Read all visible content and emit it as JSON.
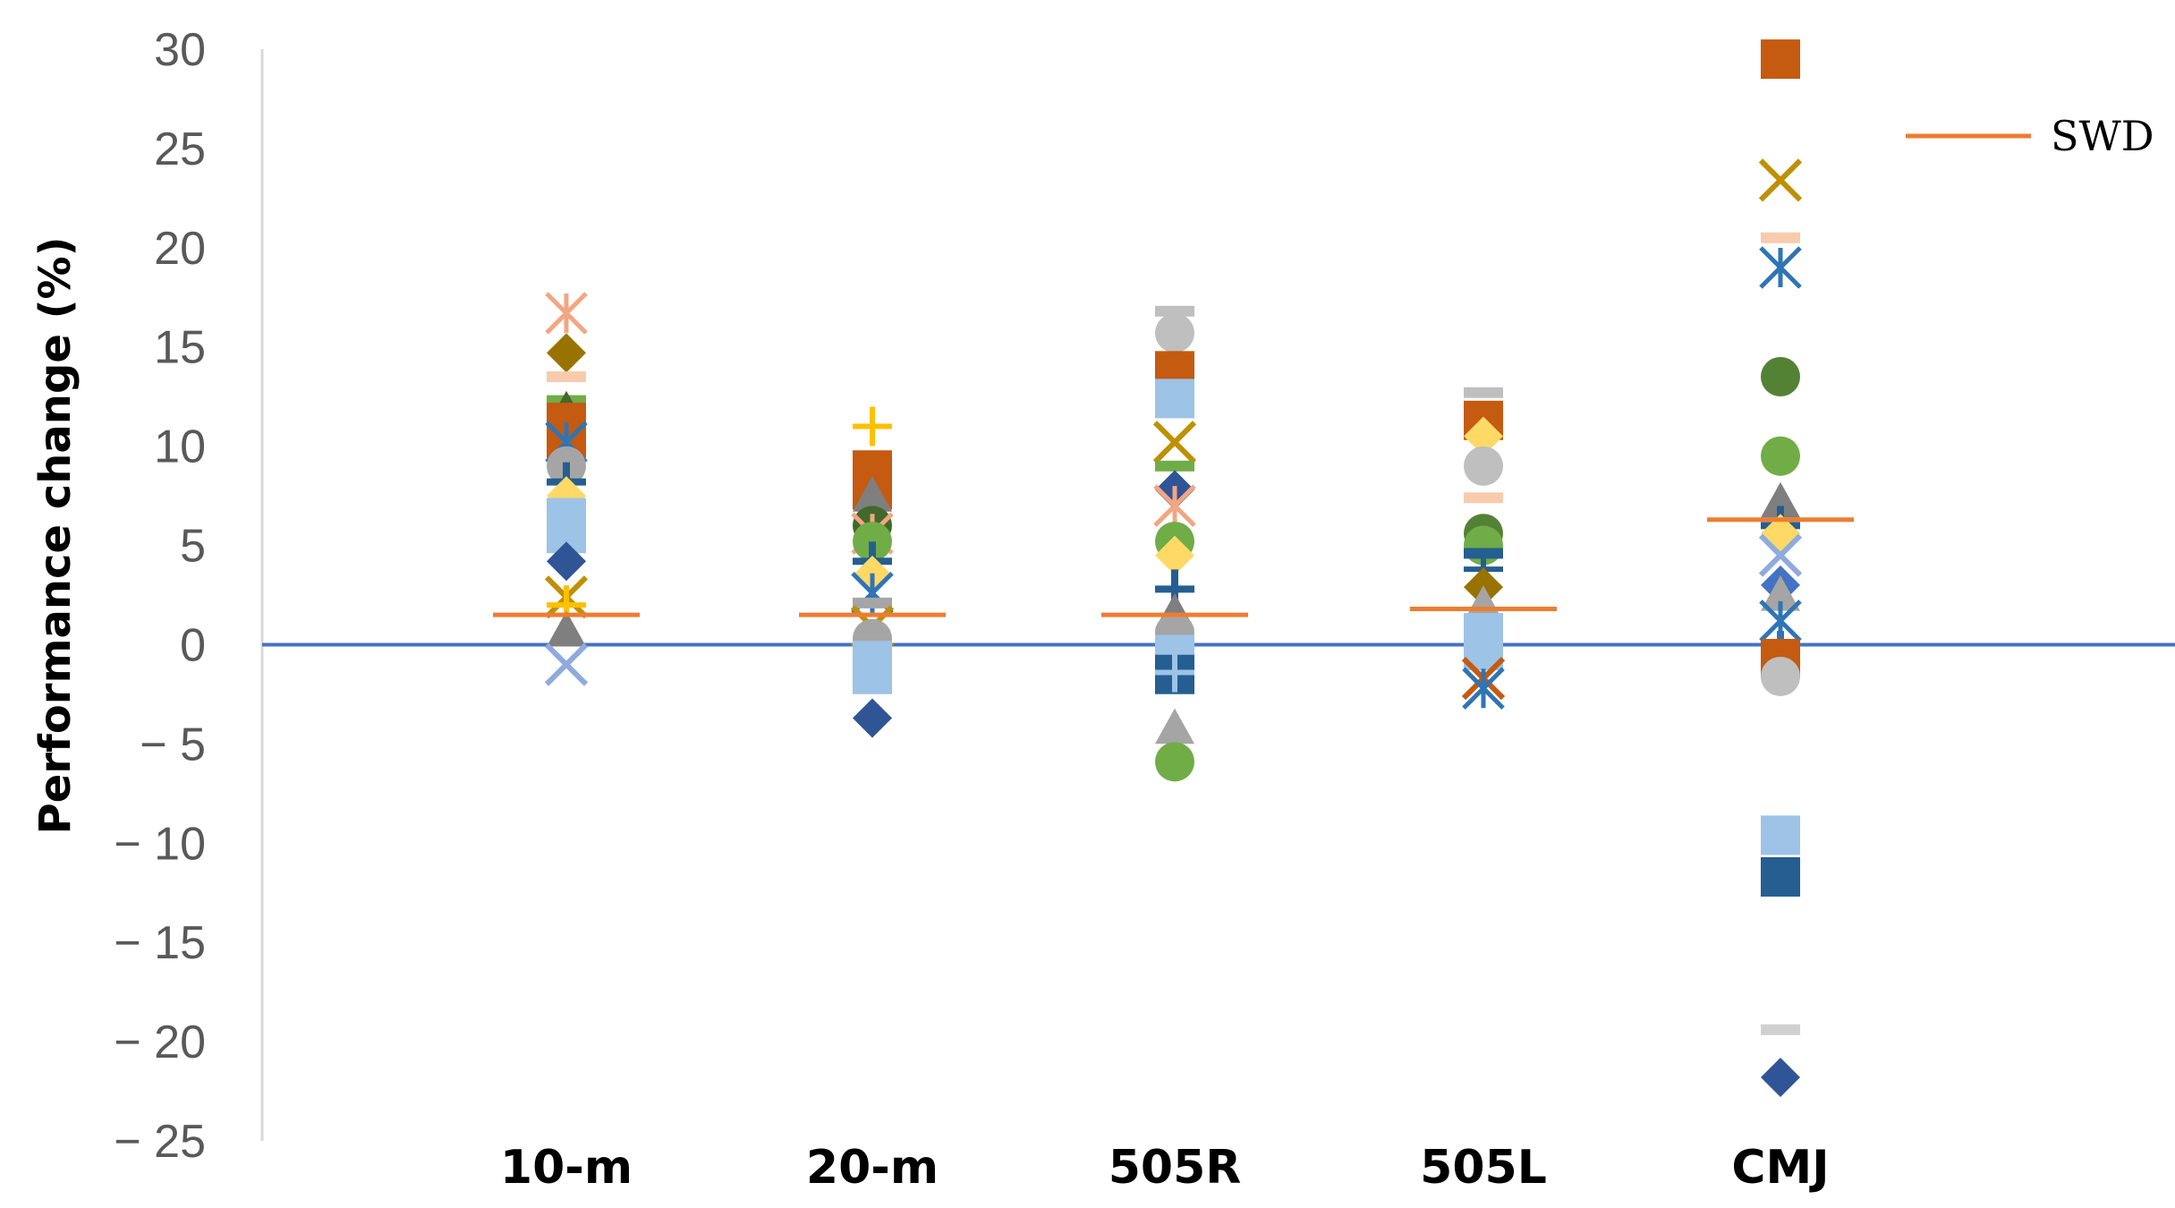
{
  "chart_data": {
    "type": "scatter",
    "ylabel": "Performance change (%)",
    "xlabel": "",
    "title": "",
    "ylim": [
      -25,
      30
    ],
    "yticks": [
      30,
      25,
      20,
      15,
      10,
      5,
      0,
      -5,
      -10,
      -15,
      -20,
      -25
    ],
    "ytick_labels": [
      "30",
      "25",
      "20",
      "15",
      "10",
      "5",
      "0",
      "− 5",
      "− 10",
      "− 15",
      "− 20",
      "− 25"
    ],
    "categories": [
      "10-m",
      "20-m",
      "505R",
      "505L",
      "CMJ"
    ],
    "zero_line": {
      "y": 0,
      "color": "#4472c4"
    },
    "swd": {
      "name": "SWD",
      "color": "#ed7d31",
      "values": [
        1.5,
        1.5,
        1.5,
        1.8,
        6.3
      ]
    },
    "legend": {
      "entries": [
        "SWD"
      ],
      "position": "top-right"
    },
    "points": [
      {
        "c": 0,
        "y": 16.7,
        "m": "star",
        "color": "#f4a582"
      },
      {
        "c": 0,
        "y": 14.7,
        "m": "diamond",
        "color": "#997300"
      },
      {
        "c": 0,
        "y": 13.5,
        "m": "dash",
        "color": "#f8cbad"
      },
      {
        "c": 0,
        "y": 12.3,
        "m": "dash",
        "color": "#70ad47"
      },
      {
        "c": 0,
        "y": 11.8,
        "m": "triangle",
        "color": "#43682b"
      },
      {
        "c": 0,
        "y": 11.2,
        "m": "square",
        "color": "#c55a11"
      },
      {
        "c": 0,
        "y": 10.4,
        "m": "square",
        "color": "#c55a11"
      },
      {
        "c": 0,
        "y": 10.2,
        "m": "star",
        "color": "#2e75b6"
      },
      {
        "c": 0,
        "y": 9.0,
        "m": "circle",
        "color": "#a5a5a5"
      },
      {
        "c": 0,
        "y": 8.2,
        "m": "cross",
        "color": "#255e91"
      },
      {
        "c": 0,
        "y": 7.5,
        "m": "diamond",
        "color": "#ffd966"
      },
      {
        "c": 0,
        "y": 6.4,
        "m": "square",
        "color": "#9dc3e6"
      },
      {
        "c": 0,
        "y": 5.6,
        "m": "square",
        "color": "#9dc3e6"
      },
      {
        "c": 0,
        "y": 4.2,
        "m": "diamond",
        "color": "#2f5597"
      },
      {
        "c": 0,
        "y": 2.4,
        "m": "x",
        "color": "#bf9000"
      },
      {
        "c": 0,
        "y": 2.0,
        "m": "plus",
        "color": "#ffc000"
      },
      {
        "c": 0,
        "y": 0.7,
        "m": "triangle",
        "color": "#7f7f7f"
      },
      {
        "c": 0,
        "y": -1.0,
        "m": "x",
        "color": "#8faadc"
      },
      {
        "c": 1,
        "y": 11.0,
        "m": "plus",
        "color": "#ffc000"
      },
      {
        "c": 1,
        "y": 9.5,
        "m": "dash",
        "color": "#f8cbad"
      },
      {
        "c": 1,
        "y": 8.8,
        "m": "square",
        "color": "#c55a11"
      },
      {
        "c": 1,
        "y": 7.8,
        "m": "square",
        "color": "#c55a11"
      },
      {
        "c": 1,
        "y": 7.5,
        "m": "triangle",
        "color": "#7f7f7f"
      },
      {
        "c": 1,
        "y": 6.0,
        "m": "circle",
        "color": "#43682b"
      },
      {
        "c": 1,
        "y": 5.6,
        "m": "star",
        "color": "#f4a582"
      },
      {
        "c": 1,
        "y": 5.2,
        "m": "circle",
        "color": "#70ad47"
      },
      {
        "c": 1,
        "y": 4.2,
        "m": "cross",
        "color": "#255e91"
      },
      {
        "c": 1,
        "y": 3.5,
        "m": "diamond",
        "color": "#ffd966"
      },
      {
        "c": 1,
        "y": 2.6,
        "m": "star",
        "color": "#2e75b6"
      },
      {
        "c": 1,
        "y": 2.1,
        "m": "dash",
        "color": "#a5a5a5"
      },
      {
        "c": 1,
        "y": 0.9,
        "m": "x",
        "color": "#bf9000"
      },
      {
        "c": 1,
        "y": 0.3,
        "m": "circle",
        "color": "#a5a5a5"
      },
      {
        "c": 1,
        "y": -0.8,
        "m": "square",
        "color": "#9dc3e6"
      },
      {
        "c": 1,
        "y": -1.5,
        "m": "square",
        "color": "#9dc3e6"
      },
      {
        "c": 1,
        "y": -3.7,
        "m": "diamond",
        "color": "#2f5597"
      },
      {
        "c": 2,
        "y": 16.8,
        "m": "dash",
        "color": "#bfbfbf"
      },
      {
        "c": 2,
        "y": 15.7,
        "m": "circle",
        "color": "#bfbfbf"
      },
      {
        "c": 2,
        "y": 13.8,
        "m": "square",
        "color": "#c55a11"
      },
      {
        "c": 2,
        "y": 12.4,
        "m": "square",
        "color": "#9dc3e6"
      },
      {
        "c": 2,
        "y": 10.2,
        "m": "x",
        "color": "#bf9000"
      },
      {
        "c": 2,
        "y": 9.0,
        "m": "dash",
        "color": "#70ad47"
      },
      {
        "c": 2,
        "y": 7.8,
        "m": "diamond",
        "color": "#2f5597"
      },
      {
        "c": 2,
        "y": 7.0,
        "m": "star",
        "color": "#f4a582"
      },
      {
        "c": 2,
        "y": 5.2,
        "m": "circle",
        "color": "#70ad47"
      },
      {
        "c": 2,
        "y": 4.5,
        "m": "diamond",
        "color": "#ffd966"
      },
      {
        "c": 2,
        "y": 2.8,
        "m": "cross",
        "color": "#255e91"
      },
      {
        "c": 2,
        "y": 1.6,
        "m": "triangle",
        "color": "#7f7f7f"
      },
      {
        "c": 2,
        "y": 0.6,
        "m": "circle",
        "color": "#a5a5a5"
      },
      {
        "c": 2,
        "y": -0.5,
        "m": "square",
        "color": "#9dc3e6"
      },
      {
        "c": 2,
        "y": -1.5,
        "m": "square",
        "color": "#255e91"
      },
      {
        "c": 2,
        "y": -1.4,
        "m": "plus",
        "color": "#9dc3e6"
      },
      {
        "c": 2,
        "y": -4.2,
        "m": "triangle",
        "color": "#a5a5a5"
      },
      {
        "c": 2,
        "y": -5.9,
        "m": "circle",
        "color": "#70ad47"
      },
      {
        "c": 3,
        "y": 12.7,
        "m": "dash",
        "color": "#bfbfbf"
      },
      {
        "c": 3,
        "y": 11.3,
        "m": "square",
        "color": "#c55a11"
      },
      {
        "c": 3,
        "y": 10.5,
        "m": "diamond",
        "color": "#ffd966"
      },
      {
        "c": 3,
        "y": 9.0,
        "m": "circle",
        "color": "#bfbfbf"
      },
      {
        "c": 3,
        "y": 7.4,
        "m": "dash",
        "color": "#f8cbad"
      },
      {
        "c": 3,
        "y": 5.6,
        "m": "circle",
        "color": "#548235"
      },
      {
        "c": 3,
        "y": 5.0,
        "m": "circle",
        "color": "#70ad47"
      },
      {
        "c": 3,
        "y": 4.6,
        "m": "dash",
        "color": "#255e91"
      },
      {
        "c": 3,
        "y": 3.8,
        "m": "plus",
        "color": "#255e91"
      },
      {
        "c": 3,
        "y": 2.9,
        "m": "diamond",
        "color": "#997300"
      },
      {
        "c": 3,
        "y": 2.0,
        "m": "triangle",
        "color": "#a5a5a5"
      },
      {
        "c": 3,
        "y": 0.6,
        "m": "square",
        "color": "#9dc3e6"
      },
      {
        "c": 3,
        "y": -0.3,
        "m": "square",
        "color": "#9dc3e6"
      },
      {
        "c": 3,
        "y": -1.7,
        "m": "x",
        "color": "#c55a11"
      },
      {
        "c": 3,
        "y": -2.2,
        "m": "star",
        "color": "#2e75b6"
      },
      {
        "c": 4,
        "y": 29.5,
        "m": "square",
        "color": "#c55a11"
      },
      {
        "c": 4,
        "y": 23.4,
        "m": "x",
        "color": "#bf9000"
      },
      {
        "c": 4,
        "y": 20.5,
        "m": "dash",
        "color": "#f8cbad"
      },
      {
        "c": 4,
        "y": 19.0,
        "m": "star",
        "color": "#2e75b6"
      },
      {
        "c": 4,
        "y": 13.5,
        "m": "circle",
        "color": "#548235"
      },
      {
        "c": 4,
        "y": 9.5,
        "m": "diamond",
        "color": "#997300"
      },
      {
        "c": 4,
        "y": 9.5,
        "m": "circle",
        "color": "#70ad47"
      },
      {
        "c": 4,
        "y": 7.2,
        "m": "triangle",
        "color": "#7f7f7f"
      },
      {
        "c": 4,
        "y": 6.0,
        "m": "cross",
        "color": "#255e91"
      },
      {
        "c": 4,
        "y": 5.6,
        "m": "diamond",
        "color": "#ffd966"
      },
      {
        "c": 4,
        "y": 4.5,
        "m": "x",
        "color": "#8faadc"
      },
      {
        "c": 4,
        "y": 3.0,
        "m": "diamond",
        "color": "#4472c4"
      },
      {
        "c": 4,
        "y": 2.5,
        "m": "triangle",
        "color": "#a5a5a5"
      },
      {
        "c": 4,
        "y": 1.2,
        "m": "star",
        "color": "#2e75b6"
      },
      {
        "c": 4,
        "y": -0.3,
        "m": "cross",
        "color": "#2e75b6"
      },
      {
        "c": 4,
        "y": -0.7,
        "m": "square",
        "color": "#c55a11"
      },
      {
        "c": 4,
        "y": -1.6,
        "m": "circle",
        "color": "#bfbfbf"
      },
      {
        "c": 4,
        "y": -9.6,
        "m": "square",
        "color": "#9dc3e6"
      },
      {
        "c": 4,
        "y": -11.7,
        "m": "square",
        "color": "#255e91"
      },
      {
        "c": 4,
        "y": -19.4,
        "m": "dash",
        "color": "#d0d0d0"
      },
      {
        "c": 4,
        "y": -21.8,
        "m": "diamond",
        "color": "#2f5597"
      }
    ]
  }
}
